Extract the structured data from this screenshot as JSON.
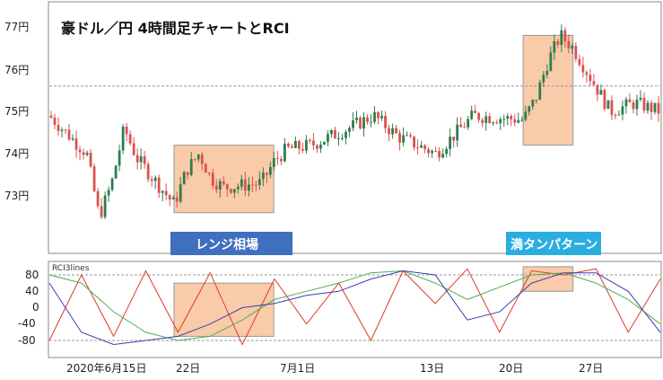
{
  "chart_data": [
    {
      "type": "candlestick",
      "title": "豪ドル／円 4時間足チャートとRCI",
      "y_ticks": [
        "77円",
        "76円",
        "75円",
        "74円",
        "73円"
      ],
      "ylim": [
        72.1,
        77.3
      ],
      "reference_line": 75.6,
      "x_ticks": [
        "2020年6月15日",
        "22日",
        "7月1日",
        "13日",
        "20日",
        "27日"
      ],
      "approx_path": [
        {
          "x": "2020-06-12",
          "y": 74.9
        },
        {
          "x": "2020-06-15",
          "y": 74.0
        },
        {
          "x": "2020-06-16",
          "y": 72.5
        },
        {
          "x": "2020-06-17",
          "y": 73.3
        },
        {
          "x": "2020-06-18",
          "y": 74.6
        },
        {
          "x": "2020-06-19",
          "y": 73.9
        },
        {
          "x": "2020-06-22",
          "y": 72.8
        },
        {
          "x": "2020-06-23",
          "y": 73.6
        },
        {
          "x": "2020-06-24",
          "y": 74.0
        },
        {
          "x": "2020-06-25",
          "y": 73.4
        },
        {
          "x": "2020-06-26",
          "y": 73.2
        },
        {
          "x": "2020-06-29",
          "y": 73.3
        },
        {
          "x": "2020-06-30",
          "y": 73.8
        },
        {
          "x": "2020-07-01",
          "y": 74.1
        },
        {
          "x": "2020-07-03",
          "y": 74.2
        },
        {
          "x": "2020-07-06",
          "y": 74.6
        },
        {
          "x": "2020-07-08",
          "y": 74.9
        },
        {
          "x": "2020-07-10",
          "y": 74.4
        },
        {
          "x": "2020-07-13",
          "y": 74.0
        },
        {
          "x": "2020-07-14",
          "y": 74.3
        },
        {
          "x": "2020-07-16",
          "y": 74.9
        },
        {
          "x": "2020-07-20",
          "y": 74.8
        },
        {
          "x": "2020-07-21",
          "y": 75.3
        },
        {
          "x": "2020-07-22",
          "y": 76.2
        },
        {
          "x": "2020-07-23",
          "y": 76.8
        },
        {
          "x": "2020-07-24",
          "y": 76.5
        },
        {
          "x": "2020-07-27",
          "y": 75.0
        },
        {
          "x": "2020-07-29",
          "y": 75.2
        },
        {
          "x": "2020-07-31",
          "y": 75.0
        }
      ],
      "annotations": [
        {
          "label": "レンジ相場",
          "x_start": "2020-06-22",
          "x_end": "2020-06-30",
          "y_range": [
            72.6,
            74.2
          ],
          "color": "#3f6fbf"
        },
        {
          "label": "満タンパターン",
          "x_start": "2020-07-20",
          "x_end": "2020-07-24",
          "y_range": [
            74.2,
            76.8
          ],
          "color": "#2aaee0"
        }
      ],
      "colors": {
        "up": "#2e7d4f",
        "down": "#d9534f",
        "highlight": "#f5a060"
      }
    },
    {
      "type": "line",
      "label": "RCI3lines",
      "y_ticks": [
        "80",
        "40",
        "0",
        "-40",
        "-80"
      ],
      "ylim": [
        -100,
        100
      ],
      "reference_lines": [
        80,
        -80
      ],
      "series": [
        {
          "color": "#e03a2a",
          "values": [
            -80,
            80,
            -70,
            90,
            -60,
            85,
            -90,
            70,
            -40,
            60,
            -80,
            90,
            10,
            95,
            -60,
            90,
            80,
            95,
            -60,
            70
          ]
        },
        {
          "color": "#4caf50",
          "values": [
            80,
            60,
            -10,
            -60,
            -80,
            -70,
            -30,
            20,
            40,
            60,
            85,
            90,
            60,
            20,
            50,
            80,
            85,
            60,
            20,
            -40
          ]
        },
        {
          "color": "#3a3fb0",
          "values": [
            60,
            -60,
            -90,
            -80,
            -70,
            -40,
            0,
            10,
            30,
            40,
            70,
            90,
            80,
            -30,
            -10,
            60,
            85,
            85,
            40,
            -60
          ]
        }
      ],
      "annotations": [
        {
          "x_start": "2020-06-22",
          "x_end": "2020-06-30",
          "y_range": [
            -70,
            60
          ]
        },
        {
          "x_start": "2020-07-20",
          "x_end": "2020-07-24",
          "y_range": [
            40,
            100
          ]
        }
      ]
    }
  ]
}
